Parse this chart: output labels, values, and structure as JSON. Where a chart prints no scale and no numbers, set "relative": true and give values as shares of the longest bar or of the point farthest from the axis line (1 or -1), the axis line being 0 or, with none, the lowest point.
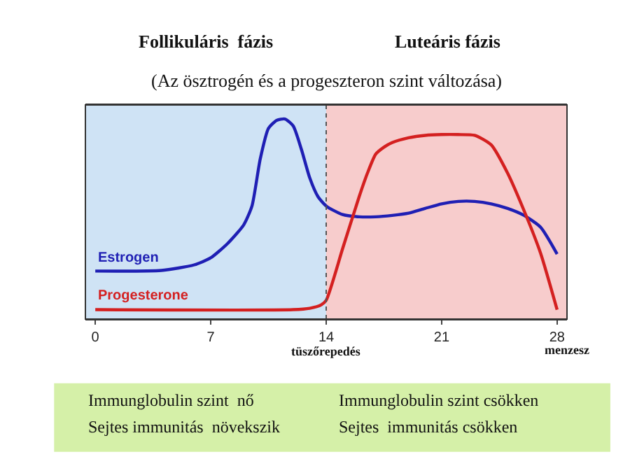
{
  "chart_data": {
    "type": "line",
    "subtitle": "(Az ösztrogén és a progeszteron szint változása)",
    "xlabel": "menzesz",
    "relative": true,
    "legend": false,
    "grid": false,
    "marker": "none",
    "line_style": "solid",
    "x": [
      0,
      4,
      6,
      7,
      8,
      9,
      9.5,
      10,
      10.5,
      11,
      11.5,
      12,
      12.5,
      13,
      13.5,
      14,
      15,
      16,
      17,
      18,
      19,
      20,
      21,
      22,
      23,
      24,
      25,
      26,
      27,
      28
    ],
    "xlim": [
      -0.6,
      28.6
    ],
    "xticks": [
      0,
      7,
      14,
      21,
      28
    ],
    "series": [
      {
        "name": "Estrogen",
        "color": "#1f1fb4",
        "values": [
          0.24,
          0.243,
          0.271,
          0.306,
          0.376,
          0.471,
          0.565,
          0.8,
          0.953,
          0.993,
          1.0,
          0.965,
          0.847,
          0.706,
          0.612,
          0.565,
          0.522,
          0.511,
          0.511,
          0.518,
          0.529,
          0.553,
          0.576,
          0.588,
          0.588,
          0.576,
          0.553,
          0.518,
          0.459,
          0.325
        ]
      },
      {
        "name": "Progesterone",
        "color": "#d42020",
        "x": [
          0,
          12,
          13,
          13.7,
          14,
          15,
          16,
          16.5,
          17,
          17.5,
          18,
          19,
          20,
          21,
          22,
          23,
          24,
          25,
          26,
          27,
          28
        ],
        "values": [
          0.047,
          0.047,
          0.054,
          0.071,
          0.094,
          0.353,
          0.612,
          0.729,
          0.824,
          0.859,
          0.882,
          0.906,
          0.918,
          0.922,
          0.922,
          0.918,
          0.871,
          0.729,
          0.541,
          0.329,
          0.047
        ]
      }
    ],
    "ref_lines": [
      {
        "axis": "x",
        "value": 14,
        "label": "tüszőrepedés",
        "color": "#555555",
        "line_style": "dotted"
      }
    ],
    "bands": [
      {
        "axis": "x",
        "from": -0.6,
        "to": 14,
        "label": "Follikuláris  fázis",
        "color": "#cfe3f5"
      },
      {
        "axis": "x",
        "from": 14,
        "to": 28.6,
        "label": "Luteáris fázis",
        "color": "#f7cccc"
      }
    ],
    "annotations": [
      "Immunglobulin szint  nő",
      "Sejtes immunitás  növekszik",
      "Immunglobulin szint csökken",
      "Sejtes  immunitás csökken"
    ]
  }
}
